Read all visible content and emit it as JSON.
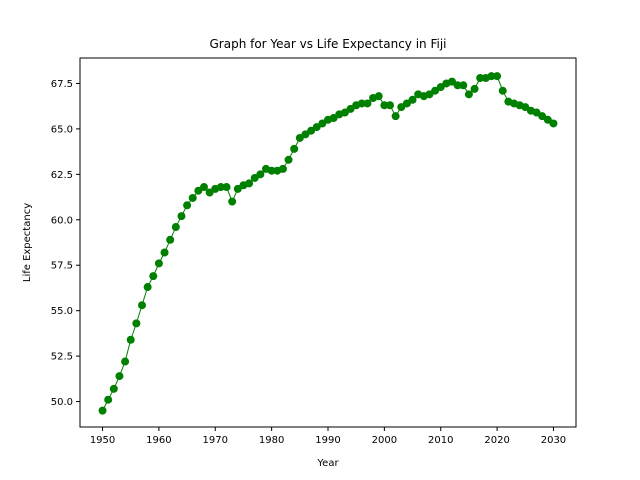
{
  "chart_data": {
    "type": "line",
    "title": "Graph for Year vs Life Expectancy in Fiji",
    "xlabel": "Year",
    "ylabel": "Life Expectancy",
    "xlim": [
      1946,
      2034
    ],
    "ylim": [
      48.6,
      68.9
    ],
    "x_ticks": [
      1950,
      1960,
      1970,
      1980,
      1990,
      2000,
      2010,
      2020,
      2030
    ],
    "y_ticks": [
      50.0,
      52.5,
      55.0,
      57.5,
      60.0,
      62.5,
      65.0,
      67.5
    ],
    "y_tick_labels": [
      "50.0",
      "52.5",
      "55.0",
      "57.5",
      "60.0",
      "62.5",
      "65.0",
      "67.5"
    ],
    "grid": false,
    "series": [
      {
        "color": "#008000",
        "marker": "circle",
        "x": [
          1950,
          1951,
          1952,
          1953,
          1954,
          1955,
          1956,
          1957,
          1958,
          1959,
          1960,
          1961,
          1962,
          1963,
          1964,
          1965,
          1966,
          1967,
          1968,
          1969,
          1970,
          1971,
          1972,
          1973,
          1974,
          1975,
          1976,
          1977,
          1978,
          1979,
          1980,
          1981,
          1982,
          1983,
          1984,
          1985,
          1986,
          1987,
          1988,
          1989,
          1990,
          1991,
          1992,
          1993,
          1994,
          1995,
          1996,
          1997,
          1998,
          1999,
          2000,
          2001,
          2002,
          2003,
          2004,
          2005,
          2006,
          2007,
          2008,
          2009,
          2010,
          2011,
          2012,
          2013,
          2014,
          2015,
          2016,
          2017,
          2018,
          2019,
          2020,
          2021,
          2022,
          2023,
          2024,
          2025,
          2026,
          2027,
          2028,
          2029,
          2030
        ],
        "values": [
          49.5,
          50.1,
          50.7,
          51.4,
          52.2,
          53.4,
          54.3,
          55.3,
          56.3,
          56.9,
          57.6,
          58.2,
          58.9,
          59.6,
          60.2,
          60.8,
          61.2,
          61.6,
          61.8,
          61.5,
          61.7,
          61.8,
          61.8,
          61.0,
          61.7,
          61.9,
          62.0,
          62.3,
          62.5,
          62.8,
          62.7,
          62.7,
          62.8,
          63.3,
          63.9,
          64.5,
          64.7,
          64.9,
          65.1,
          65.3,
          65.5,
          65.6,
          65.8,
          65.9,
          66.1,
          66.3,
          66.4,
          66.4,
          66.7,
          66.8,
          66.3,
          66.3,
          65.7,
          66.2,
          66.4,
          66.6,
          66.9,
          66.8,
          66.9,
          67.1,
          67.3,
          67.5,
          67.6,
          67.4,
          67.4,
          66.9,
          67.2,
          67.8,
          67.8,
          67.9,
          67.9,
          67.1,
          66.5,
          66.4,
          66.3,
          66.2,
          66.0,
          65.9,
          65.7,
          65.5,
          65.3
        ]
      }
    ]
  }
}
